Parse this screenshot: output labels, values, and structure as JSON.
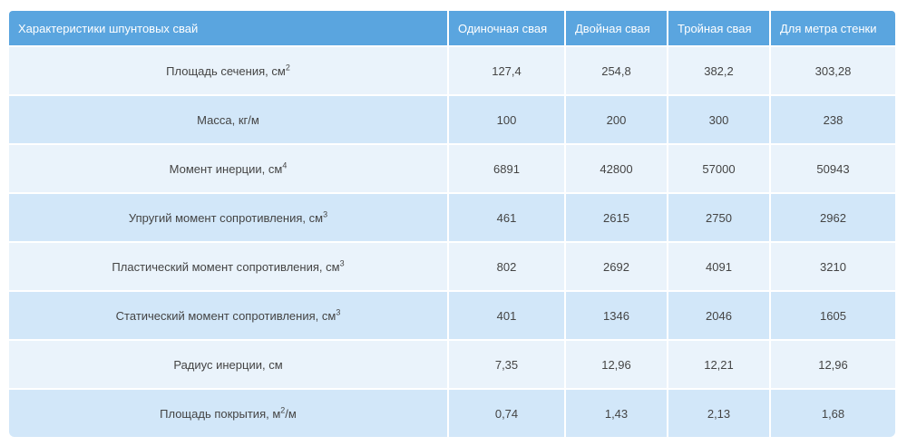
{
  "table": {
    "headers": [
      "Характеристики шпунтовых свай",
      "Одиночная свая",
      "Двойная свая",
      "Тройная свая",
      "Для метра стенки"
    ],
    "rows": [
      {
        "label": "Площадь сечения, см",
        "sup": "2",
        "unit_suffix": "",
        "values": [
          "127,4",
          "254,8",
          "382,2",
          "303,28"
        ]
      },
      {
        "label": "Масса, кг/м",
        "sup": "",
        "unit_suffix": "",
        "values": [
          "100",
          "200",
          "300",
          "238"
        ]
      },
      {
        "label": "Момент инерции, см",
        "sup": "4",
        "unit_suffix": "",
        "values": [
          "6891",
          "42800",
          "57000",
          "50943"
        ]
      },
      {
        "label": "Упругий момент сопротивления, см",
        "sup": "3",
        "unit_suffix": "",
        "values": [
          "461",
          "2615",
          "2750",
          "2962"
        ]
      },
      {
        "label": "Пластический момент сопротивления, см",
        "sup": "3",
        "unit_suffix": "",
        "values": [
          "802",
          "2692",
          "4091",
          "3210"
        ]
      },
      {
        "label": "Статический момент сопротивления, см",
        "sup": "3",
        "unit_suffix": "",
        "values": [
          "401",
          "1346",
          "2046",
          "1605"
        ]
      },
      {
        "label": "Радиус инерции, см",
        "sup": "",
        "unit_suffix": "",
        "values": [
          "7,35",
          "12,96",
          "12,21",
          "12,96"
        ]
      },
      {
        "label": "Площадь покрытия, м",
        "sup": "2",
        "unit_suffix": "/м",
        "values": [
          "0,74",
          "1,43",
          "2,13",
          "1,68"
        ]
      }
    ]
  }
}
